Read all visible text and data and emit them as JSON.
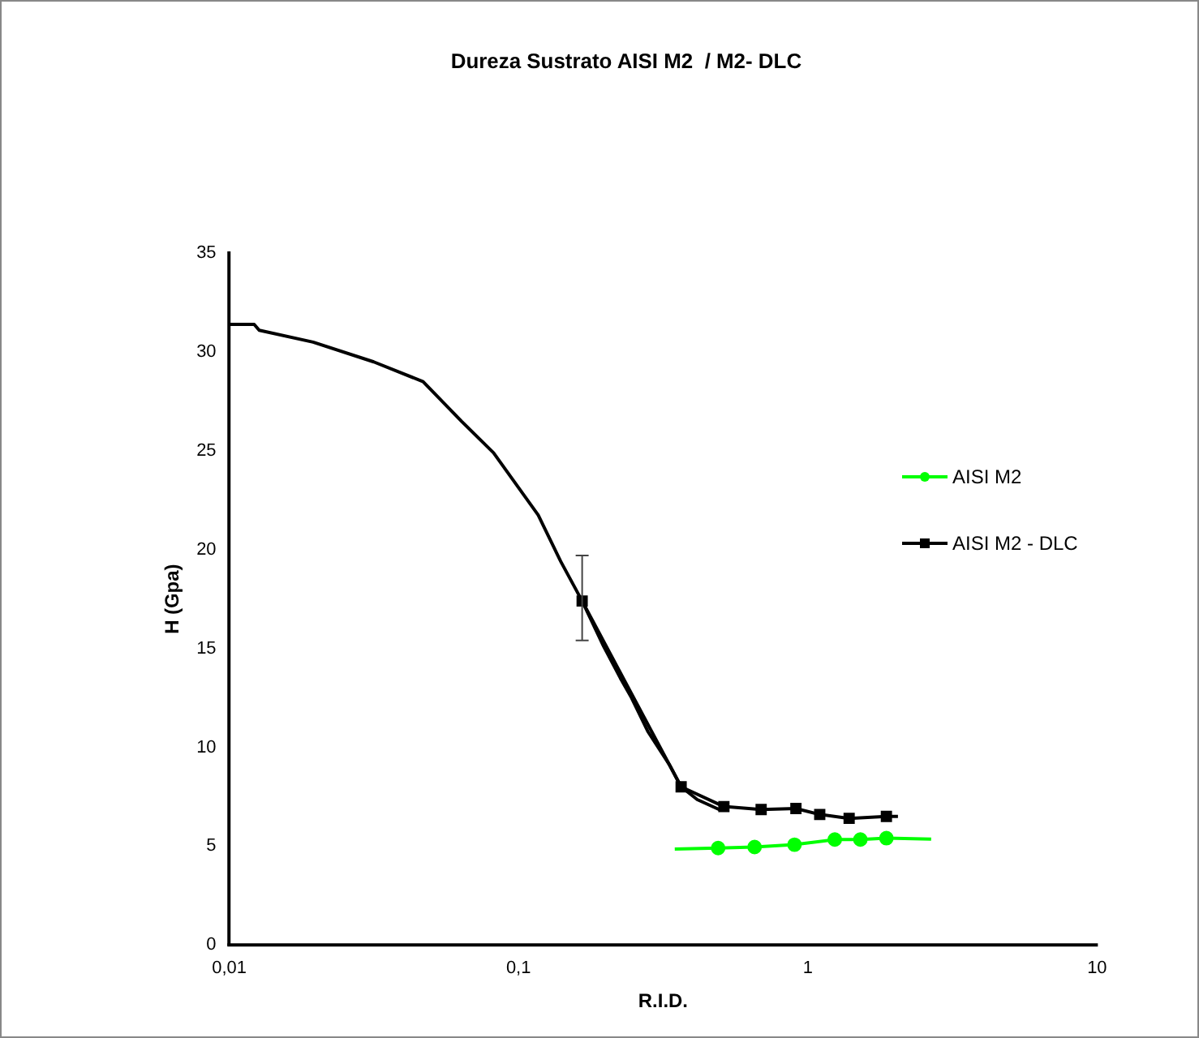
{
  "chart_data": {
    "type": "line",
    "title": "Dureza Sustrato AISI M2  / M2- DLC",
    "xlabel": "R.I.D.",
    "ylabel": "H (Gpa)",
    "log": "x",
    "xlim": [
      0.01,
      10
    ],
    "xticks": [
      {
        "value": 0.01,
        "label": "0,01"
      },
      {
        "value": 0.1,
        "label": "0,1"
      },
      1,
      10
    ],
    "ylim": [
      0,
      35
    ],
    "yticks": [
      0,
      5,
      10,
      15,
      20,
      25,
      30,
      35
    ],
    "grid": false,
    "legend": "right",
    "series": [
      {
        "name": "AISI M2",
        "color": "#00ff00",
        "marker": "circle",
        "x": [
          0.49,
          0.655,
          0.9,
          1.24,
          1.52,
          1.87
        ],
        "values": [
          4.9,
          4.95,
          5.07,
          5.33,
          5.33,
          5.4
        ]
      },
      {
        "color": "#00ff00",
        "marker": "none",
        "x": [
          0.347,
          0.49
        ],
        "values": [
          4.85,
          4.9
        ]
      },
      {
        "color": "#00ff00",
        "marker": "none",
        "x": [
          1.87,
          2.67
        ],
        "values": [
          5.4,
          5.35
        ]
      },
      {
        "name": "AISI M2 - DLC",
        "color": "#000000",
        "marker": "square",
        "x": [
          0.166,
          0.365,
          0.513,
          0.69,
          0.91,
          1.1,
          1.39,
          1.87
        ],
        "values": [
          17.4,
          8.0,
          7.0,
          6.85,
          6.9,
          6.6,
          6.4,
          6.5
        ],
        "errors": [
          [
            15.4,
            19.7
          ],
          null,
          null,
          null,
          null,
          null,
          null,
          null
        ]
      },
      {
        "color": "#000000",
        "marker": "none",
        "x": [
          0.01,
          0.0122,
          0.0127,
          0.0195,
          0.0316,
          0.0468,
          0.0635,
          0.082,
          0.117,
          0.14,
          0.166,
          0.197,
          0.225,
          0.246,
          0.28,
          0.333,
          0.365,
          0.415,
          0.494,
          0.513
        ],
        "values": [
          31.4,
          31.4,
          31.1,
          30.5,
          29.5,
          28.5,
          26.5,
          24.9,
          21.75,
          19.4,
          17.4,
          15.1,
          13.5,
          12.5,
          10.8,
          9.1,
          8.0,
          7.35,
          6.85,
          6.9
        ]
      },
      {
        "color": "#000000",
        "marker": "none",
        "x": [
          1.87,
          2.05
        ],
        "values": [
          6.5,
          6.5
        ]
      }
    ]
  }
}
